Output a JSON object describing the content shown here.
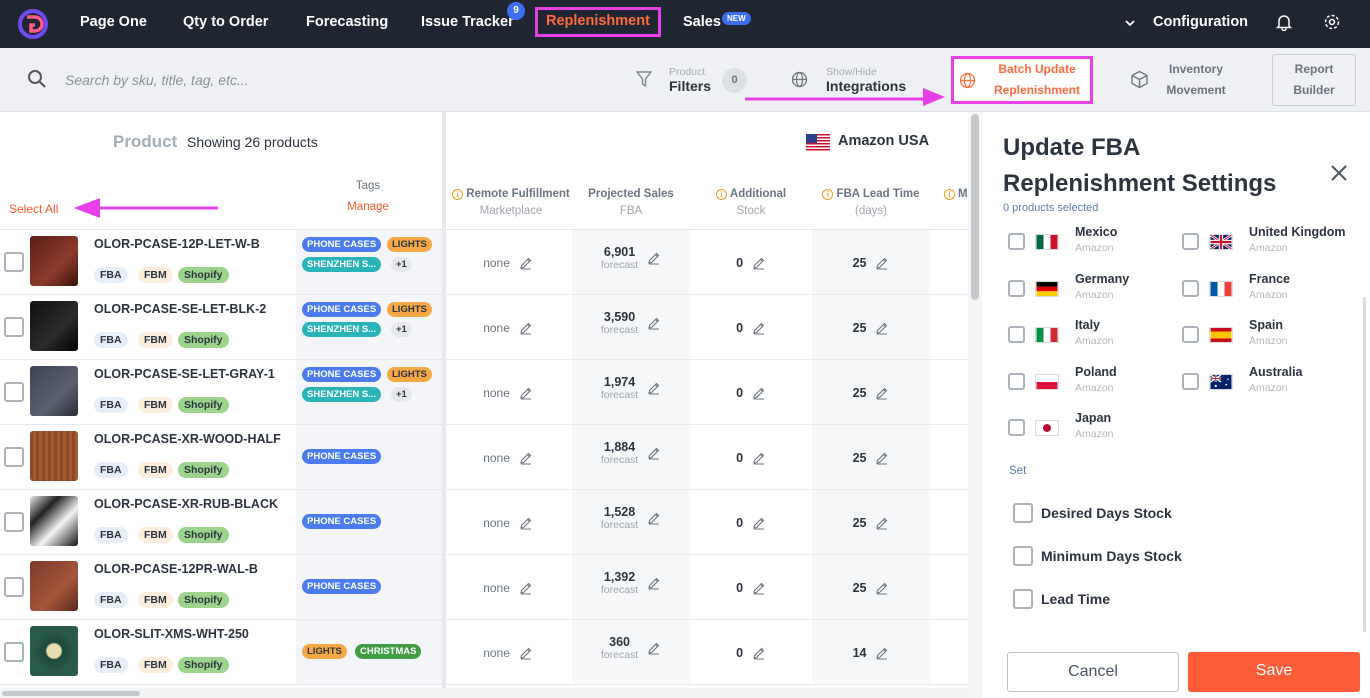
{
  "nav": {
    "items": [
      "Page One",
      "Qty to Order",
      "Forecasting",
      "Issue Tracker",
      "Replenishment",
      "Sales"
    ],
    "issue_badge": "9",
    "sales_badge": "NEW",
    "configuration": "Configuration"
  },
  "toolbar": {
    "search_placeholder": "Search by sku, title, tag, etc...",
    "filters_small": "Product",
    "filters_big": "Filters",
    "filters_count": "0",
    "integrations_small": "Show/Hide",
    "integrations_big": "Integrations",
    "batch_line1": "Batch Update",
    "batch_line2": "Replenishment",
    "inventory_line1": "Inventory",
    "inventory_line2": "Movement",
    "report_line1": "Report",
    "report_line2": "Builder"
  },
  "product_header": {
    "title": "Product",
    "showing": "Showing 26 products",
    "select_all": "Select All",
    "tags": "Tags",
    "manage": "Manage"
  },
  "marketplace": "Amazon USA",
  "columns": [
    {
      "title": "Remote Fulfillment",
      "sub": "Marketplace"
    },
    {
      "title": "Projected Sales",
      "sub": "FBA"
    },
    {
      "title": "Additional",
      "sub": "Stock"
    },
    {
      "title": "FBA Lead Time",
      "sub": "(days)"
    }
  ],
  "forecast_label": "forecast",
  "channels": [
    "FBA",
    "FBM",
    "Shopify"
  ],
  "rows": [
    {
      "sku": "OLOR-PCASE-12P-LET-W-B",
      "tags": [
        "PHONE CASES",
        "LIGHTS",
        "SHENZHEN S...",
        "+1"
      ],
      "remote": "none",
      "sales": "6,901",
      "stock": "0",
      "lead": "25"
    },
    {
      "sku": "OLOR-PCASE-SE-LET-BLK-2",
      "tags": [
        "PHONE CASES",
        "LIGHTS",
        "SHENZHEN S...",
        "+1"
      ],
      "remote": "none",
      "sales": "3,590",
      "stock": "0",
      "lead": "25"
    },
    {
      "sku": "OLOR-PCASE-SE-LET-GRAY-1",
      "tags": [
        "PHONE CASES",
        "LIGHTS",
        "SHENZHEN S...",
        "+1"
      ],
      "remote": "none",
      "sales": "1,974",
      "stock": "0",
      "lead": "25"
    },
    {
      "sku": "OLOR-PCASE-XR-WOOD-HALF",
      "tags": [
        "PHONE CASES"
      ],
      "remote": "none",
      "sales": "1,884",
      "stock": "0",
      "lead": "25"
    },
    {
      "sku": "OLOR-PCASE-XR-RUB-BLACK",
      "tags": [
        "PHONE CASES"
      ],
      "remote": "none",
      "sales": "1,528",
      "stock": "0",
      "lead": "25"
    },
    {
      "sku": "OLOR-PCASE-12PR-WAL-B",
      "tags": [
        "PHONE CASES"
      ],
      "remote": "none",
      "sales": "1,392",
      "stock": "0",
      "lead": "25"
    },
    {
      "sku": "OLOR-SLIT-XMS-WHT-250",
      "tags": [
        "LIGHTS",
        "CHRISTMAS"
      ],
      "remote": "none",
      "sales": "360",
      "stock": "0",
      "lead": "14"
    }
  ],
  "panel": {
    "title_line1": "Update FBA",
    "title_line2": "Replenishment Settings",
    "selected": "0 products selected",
    "countries": [
      {
        "name": "Mexico",
        "sub": "Amazon"
      },
      {
        "name": "United Kingdom",
        "sub": "Amazon"
      },
      {
        "name": "Germany",
        "sub": "Amazon"
      },
      {
        "name": "France",
        "sub": "Amazon"
      },
      {
        "name": "Italy",
        "sub": "Amazon"
      },
      {
        "name": "Spain",
        "sub": "Amazon"
      },
      {
        "name": "Poland",
        "sub": "Amazon"
      },
      {
        "name": "Australia",
        "sub": "Amazon"
      },
      {
        "name": "Japan",
        "sub": "Amazon"
      }
    ],
    "set_label": "Set",
    "options": [
      "Desired Days Stock",
      "Minimum Days Stock",
      "Lead Time"
    ],
    "cancel": "Cancel",
    "save": "Save"
  },
  "colors": {
    "accent": "#ff6b3d",
    "highlight": "#e640e6",
    "nav_bg": "#1f2531",
    "badge_blue": "#3b6ef5"
  }
}
